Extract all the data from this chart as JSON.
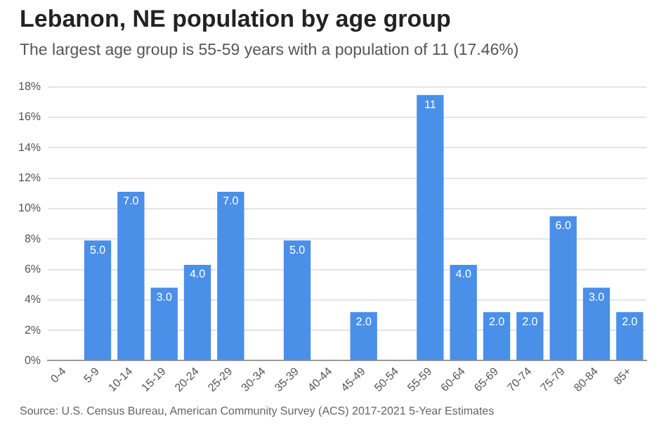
{
  "chart_data": {
    "type": "bar",
    "title": "Lebanon, NE population by age group",
    "subtitle": "The largest age group is 55-59 years with a population of 11 (17.46%)",
    "categories": [
      "0-4",
      "5-9",
      "10-14",
      "15-19",
      "20-24",
      "25-29",
      "30-34",
      "35-39",
      "40-44",
      "45-49",
      "50-54",
      "55-59",
      "60-64",
      "65-69",
      "70-74",
      "75-79",
      "80-84",
      "85+"
    ],
    "values": [
      0,
      7.9,
      11.1,
      4.8,
      6.3,
      11.1,
      0,
      7.9,
      0,
      3.2,
      0,
      17.46,
      6.3,
      3.2,
      3.2,
      9.5,
      4.8,
      3.2
    ],
    "color": "#4a8fe8",
    "ylim": [
      0,
      18
    ],
    "yticks": [
      {
        "value": 0,
        "label": "0%"
      },
      {
        "value": 2,
        "label": "2%"
      },
      {
        "value": 4,
        "label": "4%"
      },
      {
        "value": 6,
        "label": "6%"
      },
      {
        "value": 8,
        "label": "8%"
      },
      {
        "value": 10,
        "label": "10%"
      },
      {
        "value": 12,
        "label": "12%"
      },
      {
        "value": 14,
        "label": "14%"
      },
      {
        "value": 16,
        "label": "16%"
      },
      {
        "value": 18,
        "label": "18%"
      }
    ],
    "grid": "y",
    "legend": false,
    "annotations": [
      "Source: U.S. Census Bureau, American Community Survey (ACS) 2017-2021 5-Year Estimates",
      {
        "text": "5.0",
        "x": "5-9",
        "y": 7.9
      },
      {
        "text": "7.0",
        "x": "10-14",
        "y": 11.1
      },
      {
        "text": "3.0",
        "x": "15-19",
        "y": 4.8
      },
      {
        "text": "4.0",
        "x": "20-24",
        "y": 6.3
      },
      {
        "text": "7.0",
        "x": "25-29",
        "y": 11.1
      },
      {
        "text": "5.0",
        "x": "35-39",
        "y": 7.9
      },
      {
        "text": "2.0",
        "x": "45-49",
        "y": 3.2
      },
      {
        "text": "11",
        "x": "55-59",
        "y": 17.46
      },
      {
        "text": "4.0",
        "x": "60-64",
        "y": 6.3
      },
      {
        "text": "2.0",
        "x": "65-69",
        "y": 3.2
      },
      {
        "text": "2.0",
        "x": "70-74",
        "y": 3.2
      },
      {
        "text": "6.0",
        "x": "75-79",
        "y": 9.5
      },
      {
        "text": "3.0",
        "x": "80-84",
        "y": 4.8
      },
      {
        "text": "2.0",
        "x": "85+",
        "y": 3.2
      }
    ]
  }
}
